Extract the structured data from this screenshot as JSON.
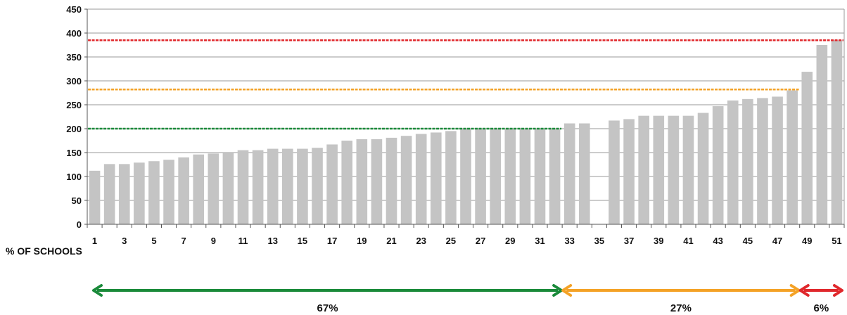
{
  "chart_data": {
    "type": "bar",
    "categories": [
      "1",
      "2",
      "3",
      "4",
      "5",
      "6",
      "7",
      "8",
      "9",
      "10",
      "11",
      "12",
      "13",
      "14",
      "15",
      "16",
      "17",
      "18",
      "19",
      "20",
      "21",
      "22",
      "23",
      "24",
      "25",
      "26",
      "27",
      "28",
      "29",
      "30",
      "31",
      "32",
      "33",
      "34",
      "35",
      "36",
      "37",
      "38",
      "39",
      "40",
      "41",
      "42",
      "43",
      "44",
      "45",
      "46",
      "47",
      "48",
      "49",
      "50",
      "51"
    ],
    "values": [
      112,
      126,
      126,
      129,
      132,
      135,
      140,
      146,
      148,
      150,
      155,
      155,
      158,
      158,
      158,
      160,
      167,
      175,
      178,
      178,
      181,
      185,
      189,
      192,
      195,
      199,
      200,
      200,
      200,
      200,
      200,
      200,
      211,
      211,
      null,
      217,
      220,
      227,
      227,
      227,
      227,
      233,
      247,
      259,
      262,
      264,
      267,
      280,
      319,
      375,
      385
    ],
    "xtick_labels": [
      "1",
      "3",
      "5",
      "7",
      "9",
      "11",
      "13",
      "15",
      "17",
      "19",
      "21",
      "23",
      "25",
      "27",
      "29",
      "31",
      "33",
      "35",
      "37",
      "39",
      "41",
      "43",
      "45",
      "47",
      "49",
      "51"
    ],
    "yticks": [
      "0",
      "50",
      "100",
      "150",
      "200",
      "250",
      "300",
      "350",
      "400",
      "450"
    ],
    "ylim": [
      0,
      450
    ],
    "bar_color": "#c4c4c4",
    "grid": true,
    "reference_lines": [
      {
        "value": 200,
        "color": "#1a8a3a",
        "from_category": 1,
        "to_category": 32
      },
      {
        "value": 282,
        "color": "#f4a226",
        "from_category": 1,
        "to_category": 48
      },
      {
        "value": 385,
        "color": "#e0282c",
        "from_category": 1,
        "to_category": 51
      }
    ],
    "section_label": "% OF SCHOOLS",
    "segments": [
      {
        "label": "67%",
        "color": "#1a8a3a",
        "from_category": 1,
        "to_category": 32
      },
      {
        "label": "27%",
        "color": "#f4a226",
        "from_category": 32,
        "to_category": 48
      },
      {
        "label": "6%",
        "color": "#e0282c",
        "from_category": 48,
        "to_category": 51
      }
    ]
  }
}
